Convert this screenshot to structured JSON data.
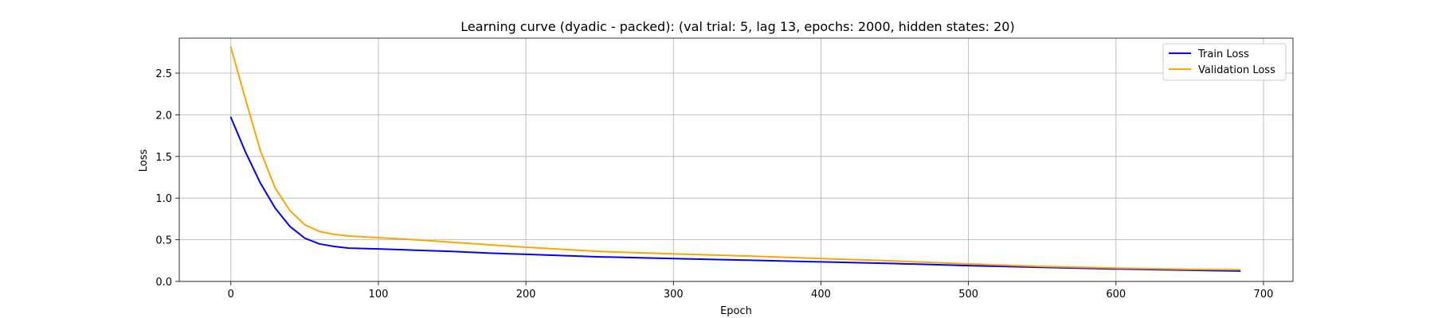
{
  "chart_data": {
    "type": "line",
    "title": "Learning curve (dyadic - packed): (val trial: 5, lag 13, epochs: 2000, hidden states: 20)",
    "xlabel": "Epoch",
    "ylabel": "Loss",
    "xlim": [
      -35,
      720
    ],
    "ylim": [
      0,
      2.92
    ],
    "xticks": [
      0,
      100,
      200,
      300,
      400,
      500,
      600,
      700
    ],
    "yticks": [
      0.0,
      0.5,
      1.0,
      1.5,
      2.0,
      2.5
    ],
    "xtick_labels": [
      "0",
      "100",
      "200",
      "300",
      "400",
      "500",
      "600",
      "700"
    ],
    "ytick_labels": [
      "0.0",
      "0.5",
      "1.0",
      "1.5",
      "2.0",
      "2.5"
    ],
    "grid": true,
    "legend_position": "top-right",
    "series": [
      {
        "name": "Train Loss",
        "color": "#0000ff",
        "x": [
          0,
          10,
          20,
          30,
          40,
          50,
          60,
          70,
          80,
          100,
          125,
          150,
          175,
          200,
          250,
          300,
          350,
          400,
          450,
          500,
          550,
          600,
          650,
          684
        ],
        "y": [
          1.97,
          1.55,
          1.18,
          0.88,
          0.66,
          0.52,
          0.45,
          0.42,
          0.4,
          0.39,
          0.375,
          0.36,
          0.34,
          0.325,
          0.295,
          0.275,
          0.255,
          0.235,
          0.215,
          0.19,
          0.17,
          0.15,
          0.135,
          0.125
        ]
      },
      {
        "name": "Validation Loss",
        "color": "#ffa500",
        "x": [
          0,
          10,
          20,
          30,
          40,
          50,
          60,
          70,
          80,
          100,
          125,
          150,
          175,
          200,
          250,
          300,
          350,
          400,
          450,
          500,
          550,
          600,
          650,
          684
        ],
        "y": [
          2.81,
          2.18,
          1.57,
          1.12,
          0.85,
          0.68,
          0.6,
          0.565,
          0.545,
          0.525,
          0.5,
          0.47,
          0.44,
          0.41,
          0.36,
          0.33,
          0.305,
          0.275,
          0.245,
          0.21,
          0.18,
          0.16,
          0.145,
          0.14
        ]
      }
    ]
  }
}
